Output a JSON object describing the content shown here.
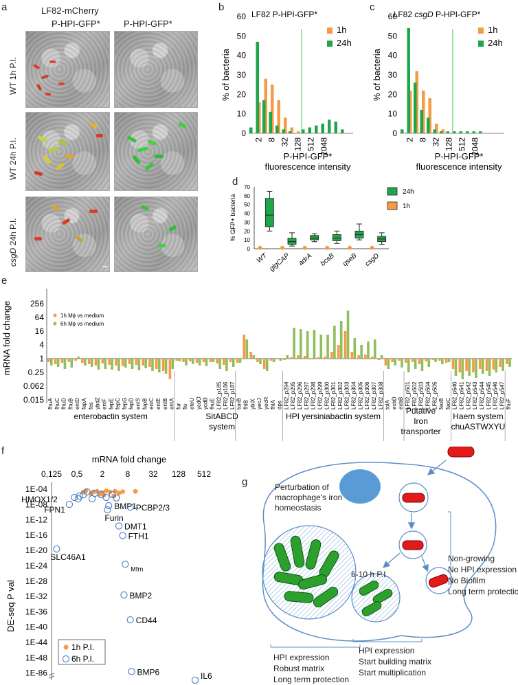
{
  "panel_letters": {
    "a": "a",
    "b": "b",
    "c": "c",
    "d": "d",
    "e": "e",
    "f": "f",
    "g": "g"
  },
  "panel_a": {
    "title": "LF82-mCherry",
    "col1": "P-HPI-GFP*",
    "col2": "P-HPI-GFP*",
    "row1": "WT 1h P.I.",
    "row2": "WT 24h P.I.",
    "row3_italic": "csgD",
    "row3_rest": " 24h P.I."
  },
  "chart_data": [
    {
      "id": "b",
      "type": "bar",
      "title": "LF82 P-HPI-GFP*",
      "xlabel": "P-HPI-GFP* fluorescence intensity",
      "ylabel": "% of bacteria",
      "ylim": [
        0,
        60
      ],
      "yticks": [
        "0",
        "10",
        "20",
        "30",
        "40",
        "50",
        "60"
      ],
      "xtick_labels": [
        "2",
        "8",
        "32",
        "128",
        "512",
        "2048"
      ],
      "series": [
        {
          "name": "1h",
          "color": "#f79a44",
          "values": [
            0,
            16,
            28,
            25,
            17,
            8,
            3,
            1,
            0,
            0,
            0,
            0,
            0,
            0,
            0,
            0
          ]
        },
        {
          "name": "24h",
          "color": "#1fa64a",
          "values": [
            3,
            47,
            17,
            11,
            4,
            2,
            1,
            0,
            2,
            3,
            4,
            5,
            7,
            6,
            2,
            0
          ]
        }
      ],
      "threshold_bin": 8.1
    },
    {
      "id": "c",
      "type": "bar",
      "title_pre": "LF82 ",
      "title_italic": "csgD",
      "title_post": " P-HPI-GFP*",
      "xlabel": "P-HPI-GFP* fluorescence intensity",
      "ylabel": "% of bacteria",
      "ylim": [
        0,
        60
      ],
      "yticks": [
        "0",
        "10",
        "20",
        "30",
        "40",
        "50",
        "60"
      ],
      "xtick_labels": [
        "2",
        "8",
        "32",
        "128",
        "512",
        "2048"
      ],
      "series": [
        {
          "name": "1h",
          "color": "#f79a44",
          "values": [
            0,
            22,
            32,
            22,
            18,
            5,
            2,
            0,
            0,
            0,
            0,
            0,
            0,
            0,
            0,
            0
          ]
        },
        {
          "name": "24h",
          "color": "#1fa64a",
          "values": [
            2,
            54,
            26,
            12,
            8,
            2,
            1,
            1,
            1,
            1,
            1,
            1,
            1,
            0,
            0,
            0
          ]
        }
      ],
      "threshold_bin": 8.1
    },
    {
      "id": "d",
      "type": "box",
      "ylabel": "% GFP+ bacteria",
      "ylim": [
        0,
        70
      ],
      "yticks": [
        "0",
        "10",
        "20",
        "30",
        "40",
        "50",
        "60",
        "70"
      ],
      "categories": [
        "WT",
        "glgCAP",
        "adrA",
        "bcsB",
        "qseB",
        "csgD"
      ],
      "legend": [
        "24h",
        "1h"
      ],
      "boxes_24h": [
        {
          "min": 20,
          "q1": 25,
          "median": 38,
          "q3": 57,
          "max": 65
        },
        {
          "min": 3,
          "q1": 5,
          "median": 8,
          "q3": 12,
          "max": 18
        },
        {
          "min": 8,
          "q1": 10,
          "median": 12,
          "q3": 15,
          "max": 17
        },
        {
          "min": 6,
          "q1": 9,
          "median": 12,
          "q3": 16,
          "max": 20
        },
        {
          "min": 10,
          "q1": 12,
          "median": 16,
          "q3": 20,
          "max": 28
        },
        {
          "min": 5,
          "q1": 8,
          "median": 11,
          "q3": 14,
          "max": 18
        }
      ],
      "values_1h": [
        1,
        1,
        1,
        1,
        1,
        1
      ]
    },
    {
      "id": "e",
      "type": "bar",
      "ylabel": "mRNA fold change",
      "scale": "log",
      "ytick_labels": [
        "256",
        "64",
        "16",
        "4",
        "1",
        "0.25",
        "0.062",
        "0.015"
      ],
      "legend": [
        "1h Mϕ vs medium",
        "6h Mϕ vs medium"
      ],
      "series_colors": [
        "#f79a44",
        "#8fbf5a"
      ],
      "genes": [
        "fhuA",
        "fhuC",
        "fhuD",
        "fhuB",
        "entD",
        "fepA",
        "fes",
        "ybdZ",
        "entF",
        "fepE",
        "fepC",
        "fepG",
        "fepD",
        "entS",
        "fepB",
        "entC",
        "entE",
        "entB",
        "entA",
        "fur",
        "fiu",
        "efeU",
        "ycdO",
        "ycdB",
        "fhuE",
        "LF82_p185",
        "LF82_p186",
        "LF82_p187",
        "tonB",
        "fhlB",
        "ybiX",
        "yecJ",
        "yecR",
        "fhlA",
        "dps",
        "LF82_p294",
        "LF82_p295",
        "LF82_p296",
        "LF82_p297",
        "LF82_p298",
        "LF82_p299",
        "LF82_p300",
        "LF82_p301",
        "LF82_p302",
        "LF82_p303",
        "LF82_p304",
        "LF82_p305",
        "LF82_p306",
        "LF82_p307",
        "LF82_p308",
        "tolA",
        "exbD",
        "exbB",
        "LF82_p501",
        "LF82_p502",
        "LF82_p503",
        "LF82_p504",
        "LF82_p505",
        "feoB",
        "feoC",
        "LF82_p540",
        "LF82_p541",
        "LF82_p542",
        "LF82_p543",
        "LF82_p544",
        "LF82_p545",
        "LF82_p546",
        "LF82_p547",
        "fhuF"
      ],
      "log2_1h": [
        -0.5,
        -0.8,
        -0.6,
        -0.5,
        -0.3,
        -0.6,
        -0.8,
        -1,
        -0.7,
        -0.9,
        -1,
        -1.1,
        -0.8,
        -0.9,
        -1,
        -1.2,
        -1.5,
        -1.8,
        -3,
        -0.3,
        -0.5,
        -0.4,
        -0.6,
        -0.5,
        -0.5,
        -0.7,
        -0.9,
        -0.5,
        -0.6,
        3.5,
        1,
        -0.5,
        -1.5,
        -0.3,
        -0.1,
        -0.2,
        0.2,
        0.5,
        0.4,
        -0.1,
        0.2,
        0.3,
        1,
        2,
        4,
        1,
        0.5,
        0.6,
        0.3,
        -0.2,
        -1,
        -0.5,
        -0.3,
        -0.6,
        -0.5,
        -0.8,
        -0.4,
        -0.2,
        -0.3,
        -0.6,
        -1.5,
        -2,
        -1.8,
        -2,
        -1.5,
        -1.8,
        -1.6,
        -1.2,
        -0.8
      ],
      "log2_6h": [
        -1,
        -1.2,
        -1.5,
        -1.3,
        0.3,
        -1,
        -1.2,
        -1.6,
        -1.5,
        -1.6,
        -1.8,
        -1.3,
        -1.5,
        -1.7,
        -1.4,
        -1.8,
        -2,
        -2.2,
        -1.5,
        -0.4,
        -1,
        -0.8,
        -1,
        -1.1,
        -0.5,
        -1.5,
        -1.8,
        -1.2,
        -0.6,
        2.8,
        0.5,
        -0.8,
        -1.8,
        -0.5,
        -0.3,
        0.5,
        4.5,
        4.3,
        4,
        4.2,
        3.5,
        3.5,
        4.8,
        5.5,
        7,
        3,
        2,
        2.5,
        2.8,
        0.5,
        -1.5,
        -1,
        -1.3,
        -2,
        -1.5,
        -1.8,
        -1.2,
        -0.5,
        -0.8,
        -0.5,
        -2.5,
        -3,
        -2.5,
        -2.8,
        -2.2,
        -2.5,
        -2,
        -1.8,
        -1.2
      ],
      "groups": [
        {
          "label": "enterobactin system",
          "start": 0,
          "end": 18
        },
        {
          "label": "SitABCD system",
          "start": 24,
          "end": 27
        },
        {
          "label": "HPI yersiniabactin system",
          "start": 35,
          "end": 49
        },
        {
          "label": "Putative Iron transporter",
          "start": 53,
          "end": 57
        },
        {
          "label": "Haem system chuASTWXYU",
          "start": 60,
          "end": 67
        }
      ]
    },
    {
      "id": "f",
      "type": "scatter",
      "xlabel": "mRNA fold change",
      "ylabel": "DE-seq P val",
      "xscale": "log2",
      "xtick_labels": [
        "0,125",
        "0,5",
        "2",
        "8",
        "32",
        "128",
        "512"
      ],
      "ytick_labels": [
        "1E-04",
        "1E-08",
        "1E-12",
        "1E-16",
        "1E-20",
        "1E-24",
        "1E-28",
        "1E-32",
        "1E-36",
        "1E-40",
        "1E-44",
        "1E-48",
        "1E-86"
      ],
      "legend": [
        "1h P.I.",
        "6h P.I."
      ],
      "labels": [
        {
          "text": "HMOX1/2",
          "log2x": -0.9,
          "logp": -3.5
        },
        {
          "text": "FPN1",
          "log2x": -1.6,
          "logp": -5.5
        },
        {
          "text": "BMP1",
          "log2x": 1.5,
          "logp": -6
        },
        {
          "text": "PCBP2/3",
          "log2x": 3.2,
          "logp": -6.5
        },
        {
          "text": "Furin",
          "log2x": 1.4,
          "logp": -7.5
        },
        {
          "text": "DMT1",
          "log2x": 2.3,
          "logp": -10
        },
        {
          "text": "FTH1",
          "log2x": 2.6,
          "logp": -12.5
        },
        {
          "text": "SLC46A1",
          "log2x": -2.6,
          "logp": -16
        },
        {
          "text": "Mfrn",
          "log2x": 2.8,
          "logp": -20
        },
        {
          "text": "BMP2",
          "log2x": 2.7,
          "logp": -28
        },
        {
          "text": "CD44",
          "log2x": 3.2,
          "logp": -34.5
        },
        {
          "text": "BMP6",
          "log2x": 3.3,
          "logp": -48
        },
        {
          "text": "IL6",
          "log2x": 8.3,
          "logp": -86
        }
      ]
    }
  ],
  "panel_g": {
    "perturbation": "Perturbation of macrophage's iron homeostasis",
    "timepoint": "6-10 h P.I.",
    "right_list": [
      "Non-growing",
      "No HPI expression",
      "No Biofilm",
      "Long term protection"
    ],
    "left_list": [
      "HPI expression",
      "Robust matrix",
      "Long term protection"
    ],
    "mid_list": [
      "HPI expression",
      "Start building matrix",
      "Start multiplication"
    ]
  }
}
